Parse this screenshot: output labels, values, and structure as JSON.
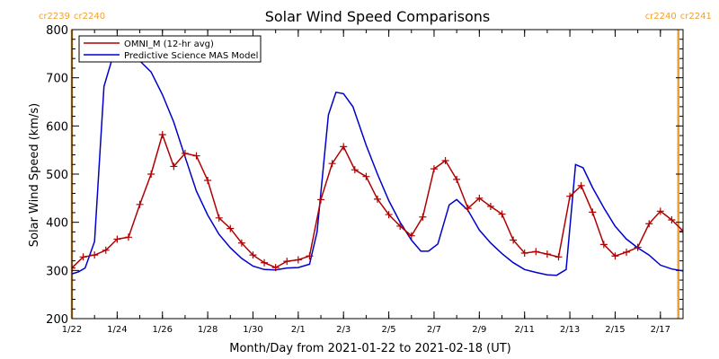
{
  "chart_data": {
    "type": "line",
    "title": "Solar Wind Speed Comparisons",
    "xlabel": "Month/Day from 2021-01-22 to 2021-02-18 (UT)",
    "ylabel": "Solar Wind Speed (km/s)",
    "xlim": [
      "2021-01-22",
      "2021-02-18"
    ],
    "ylim": [
      200,
      800
    ],
    "x_ticks": [
      "1/22",
      "1/24",
      "1/26",
      "1/28",
      "1/30",
      "2/1",
      "2/3",
      "2/5",
      "2/7",
      "2/9",
      "2/11",
      "2/13",
      "2/15",
      "2/17"
    ],
    "y_ticks": [
      200,
      300,
      400,
      500,
      600,
      700,
      800
    ],
    "legend_position": "top-left",
    "colors": {
      "omni": "#b00000",
      "mas": "#0000cc",
      "rotation": "#f0a030"
    },
    "rotation_markers": [
      {
        "date": "2021-01-22T00:00",
        "label_left": "cr2239",
        "label_right": "cr2240"
      },
      {
        "date": "2021-02-17T19:00",
        "label_left": "cr2240",
        "label_right": "cr2241"
      }
    ],
    "series": [
      {
        "name": "OMNI_M (12-hr avg)",
        "marker": "plus",
        "points": [
          [
            "2021-01-22T00:00",
            305
          ],
          [
            "2021-01-22T12:00",
            328
          ],
          [
            "2021-01-23T00:00",
            332
          ],
          [
            "2021-01-23T12:00",
            342
          ],
          [
            "2021-01-24T00:00",
            365
          ],
          [
            "2021-01-24T12:00",
            369
          ],
          [
            "2021-01-25T00:00",
            437
          ],
          [
            "2021-01-25T12:00",
            500
          ],
          [
            "2021-01-26T00:00",
            582
          ],
          [
            "2021-01-26T12:00",
            516
          ],
          [
            "2021-01-27T00:00",
            543
          ],
          [
            "2021-01-27T12:00",
            538
          ],
          [
            "2021-01-28T00:00",
            487
          ],
          [
            "2021-01-28T12:00",
            409
          ],
          [
            "2021-01-29T00:00",
            387
          ],
          [
            "2021-01-29T12:00",
            357
          ],
          [
            "2021-01-30T00:00",
            332
          ],
          [
            "2021-01-30T12:00",
            316
          ],
          [
            "2021-01-31T00:00",
            306
          ],
          [
            "2021-01-31T12:00",
            319
          ],
          [
            "2021-02-01T00:00",
            322
          ],
          [
            "2021-02-01T12:00",
            330
          ],
          [
            "2021-02-02T00:00",
            447
          ],
          [
            "2021-02-02T12:00",
            522
          ],
          [
            "2021-02-03T00:00",
            557
          ],
          [
            "2021-02-03T12:00",
            509
          ],
          [
            "2021-02-04T00:00",
            495
          ],
          [
            "2021-02-04T12:00",
            448
          ],
          [
            "2021-02-05T00:00",
            416
          ],
          [
            "2021-02-05T12:00",
            392
          ],
          [
            "2021-02-06T00:00",
            372
          ],
          [
            "2021-02-06T12:00",
            411
          ],
          [
            "2021-02-07T00:00",
            511
          ],
          [
            "2021-02-07T12:00",
            528
          ],
          [
            "2021-02-08T00:00",
            489
          ],
          [
            "2021-02-08T12:00",
            429
          ],
          [
            "2021-02-09T00:00",
            450
          ],
          [
            "2021-02-09T12:00",
            433
          ],
          [
            "2021-02-10T00:00",
            417
          ],
          [
            "2021-02-10T12:00",
            363
          ],
          [
            "2021-02-11T00:00",
            336
          ],
          [
            "2021-02-11T12:00",
            339
          ],
          [
            "2021-02-12T00:00",
            334
          ],
          [
            "2021-02-12T12:00",
            328
          ],
          [
            "2021-02-13T00:00",
            454
          ],
          [
            "2021-02-13T12:00",
            476
          ],
          [
            "2021-02-14T00:00",
            421
          ],
          [
            "2021-02-14T12:00",
            354
          ],
          [
            "2021-02-15T00:00",
            330
          ],
          [
            "2021-02-15T12:00",
            338
          ],
          [
            "2021-02-16T00:00",
            348
          ],
          [
            "2021-02-16T12:00",
            397
          ],
          [
            "2021-02-17T00:00",
            423
          ],
          [
            "2021-02-17T12:00",
            405
          ],
          [
            "2021-02-18T00:00",
            382
          ],
          [
            "2021-02-18T12:00",
            369
          ]
        ]
      },
      {
        "name": "Predictive Science MAS Model",
        "marker": "none",
        "points": [
          [
            "2021-01-22T00:00",
            293
          ],
          [
            "2021-01-22T07:00",
            297
          ],
          [
            "2021-01-22T14:00",
            305
          ],
          [
            "2021-01-23T00:00",
            360
          ],
          [
            "2021-01-23T10:00",
            682
          ],
          [
            "2021-01-23T18:00",
            735
          ],
          [
            "2021-01-24T05:00",
            741
          ],
          [
            "2021-01-24T14:00",
            741
          ],
          [
            "2021-01-25T00:00",
            735
          ],
          [
            "2021-01-25T12:00",
            712
          ],
          [
            "2021-01-26T00:00",
            665
          ],
          [
            "2021-01-26T12:00",
            608
          ],
          [
            "2021-01-27T00:00",
            536
          ],
          [
            "2021-01-27T12:00",
            465
          ],
          [
            "2021-01-28T00:00",
            415
          ],
          [
            "2021-01-28T12:00",
            375
          ],
          [
            "2021-01-29T00:00",
            347
          ],
          [
            "2021-01-29T12:00",
            325
          ],
          [
            "2021-01-30T00:00",
            309
          ],
          [
            "2021-01-30T12:00",
            302
          ],
          [
            "2021-01-31T00:00",
            301
          ],
          [
            "2021-01-31T12:00",
            305
          ],
          [
            "2021-02-01T00:00",
            306
          ],
          [
            "2021-02-01T12:00",
            313
          ],
          [
            "2021-02-01T20:00",
            380
          ],
          [
            "2021-02-02T08:00",
            623
          ],
          [
            "2021-02-02T16:00",
            670
          ],
          [
            "2021-02-03T00:00",
            667
          ],
          [
            "2021-02-03T10:00",
            640
          ],
          [
            "2021-02-04T00:00",
            560
          ],
          [
            "2021-02-04T12:00",
            500
          ],
          [
            "2021-02-05T00:00",
            445
          ],
          [
            "2021-02-05T12:00",
            400
          ],
          [
            "2021-02-06T00:00",
            363
          ],
          [
            "2021-02-06T10:00",
            340
          ],
          [
            "2021-02-06T18:00",
            340
          ],
          [
            "2021-02-07T04:00",
            355
          ],
          [
            "2021-02-07T16:00",
            436
          ],
          [
            "2021-02-08T00:00",
            447
          ],
          [
            "2021-02-08T12:00",
            425
          ],
          [
            "2021-02-09T00:00",
            384
          ],
          [
            "2021-02-09T12:00",
            357
          ],
          [
            "2021-02-10T00:00",
            335
          ],
          [
            "2021-02-10T12:00",
            316
          ],
          [
            "2021-02-11T00:00",
            302
          ],
          [
            "2021-02-11T12:00",
            296
          ],
          [
            "2021-02-12T00:00",
            291
          ],
          [
            "2021-02-12T10:00",
            290
          ],
          [
            "2021-02-12T20:00",
            302
          ],
          [
            "2021-02-13T06:00",
            520
          ],
          [
            "2021-02-13T14:00",
            513
          ],
          [
            "2021-02-14T00:00",
            472
          ],
          [
            "2021-02-14T12:00",
            430
          ],
          [
            "2021-02-15T00:00",
            392
          ],
          [
            "2021-02-15T12:00",
            365
          ],
          [
            "2021-02-16T00:00",
            347
          ],
          [
            "2021-02-16T12:00",
            332
          ],
          [
            "2021-02-17T00:00",
            311
          ],
          [
            "2021-02-17T12:00",
            303
          ],
          [
            "2021-02-18T00:00",
            299
          ],
          [
            "2021-02-18T12:00",
            296
          ],
          [
            "2021-02-18T20:00",
            296
          ]
        ]
      }
    ]
  }
}
